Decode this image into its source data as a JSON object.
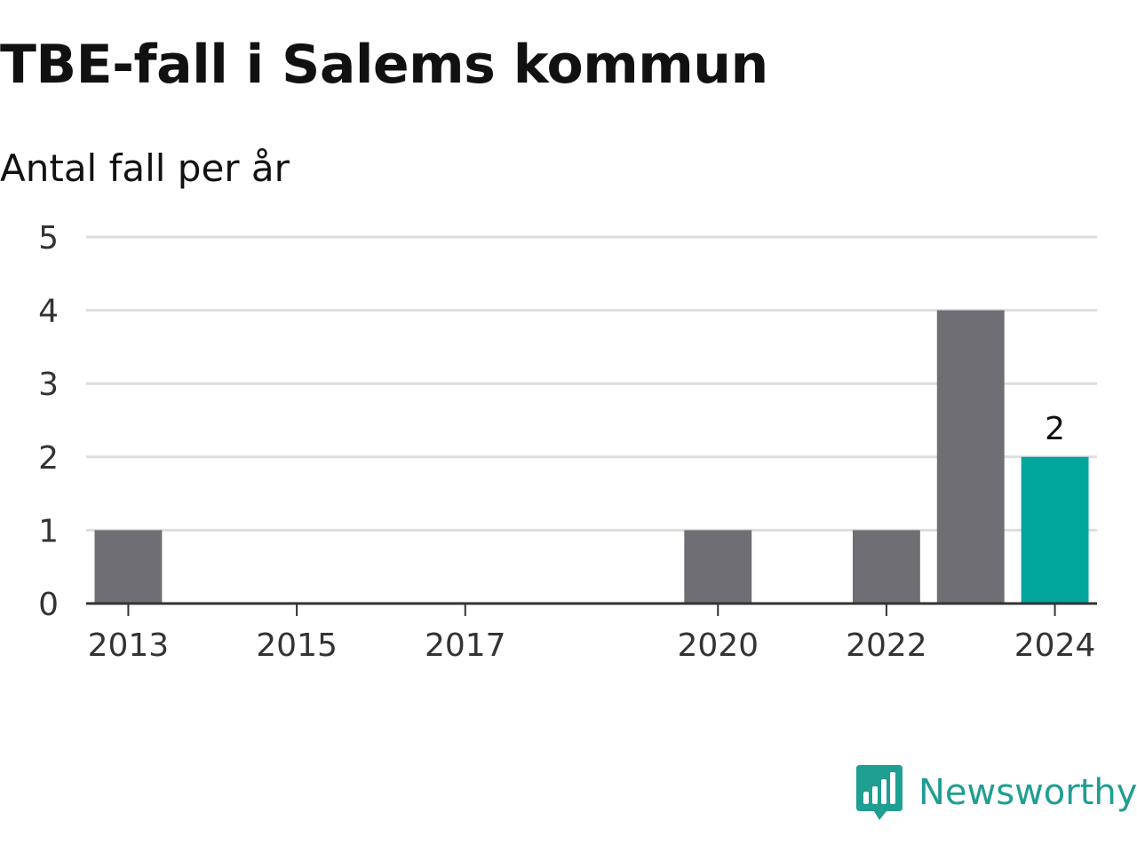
{
  "header": {
    "title": "TBE-fall i Salems kommun",
    "subtitle": "Antal fall per år"
  },
  "brand": {
    "name": "Newsworthy",
    "icon": "bar-chart-speech-bubble-icon",
    "color": "#1f9e92"
  },
  "chart_data": {
    "type": "bar",
    "x": [
      2013,
      2014,
      2015,
      2016,
      2017,
      2018,
      2019,
      2020,
      2021,
      2022,
      2023,
      2024
    ],
    "values": [
      1,
      0,
      0,
      0,
      0,
      0,
      0,
      1,
      0,
      1,
      4,
      2
    ],
    "x_tick_labels": [
      "2013",
      "2015",
      "2017",
      "2020",
      "2022",
      "2024"
    ],
    "y_ticks": [
      0,
      1,
      2,
      3,
      4,
      5
    ],
    "ylim": [
      0,
      5
    ],
    "grid": true,
    "highlight": {
      "x": 2024,
      "label": "2",
      "color": "#00a69c"
    },
    "bar_color": "#6f6e74",
    "xlabel": "",
    "ylabel": ""
  }
}
